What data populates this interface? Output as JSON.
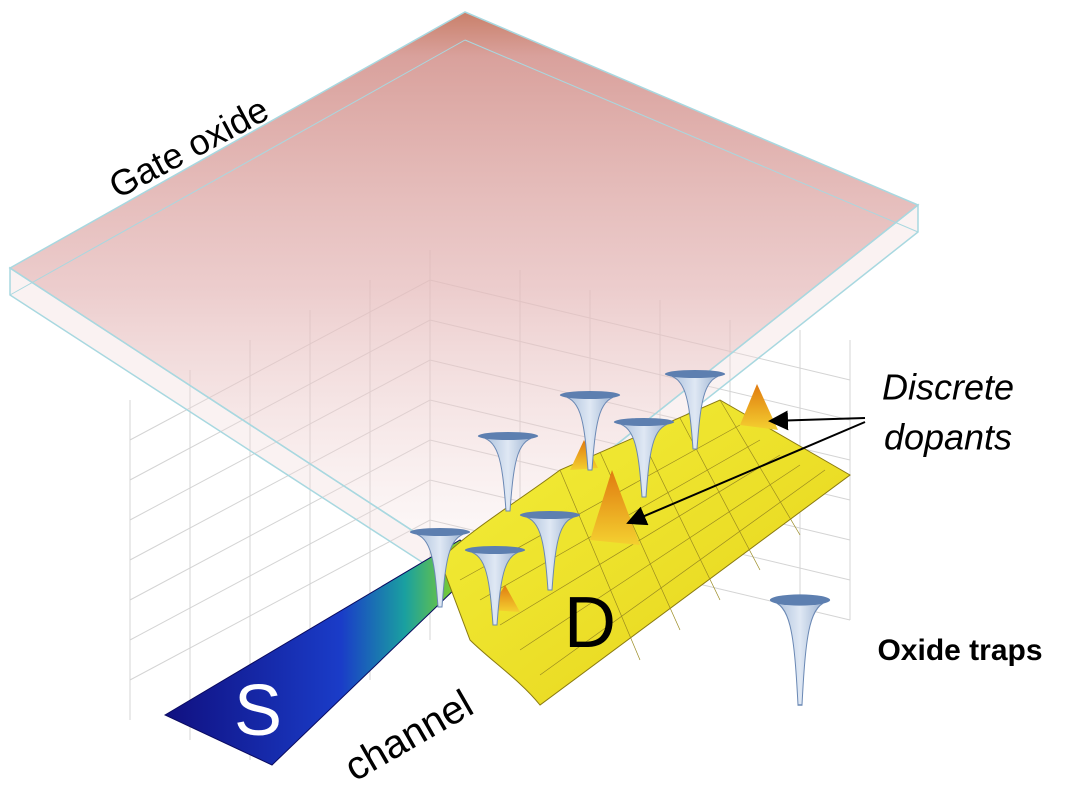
{
  "labels": {
    "gate_oxide": "Gate oxide",
    "source": "S",
    "drain": "D",
    "channel": "channel",
    "discrete_dopants": [
      "Discrete",
      "dopants"
    ],
    "oxide_traps": "Oxide traps"
  }
}
